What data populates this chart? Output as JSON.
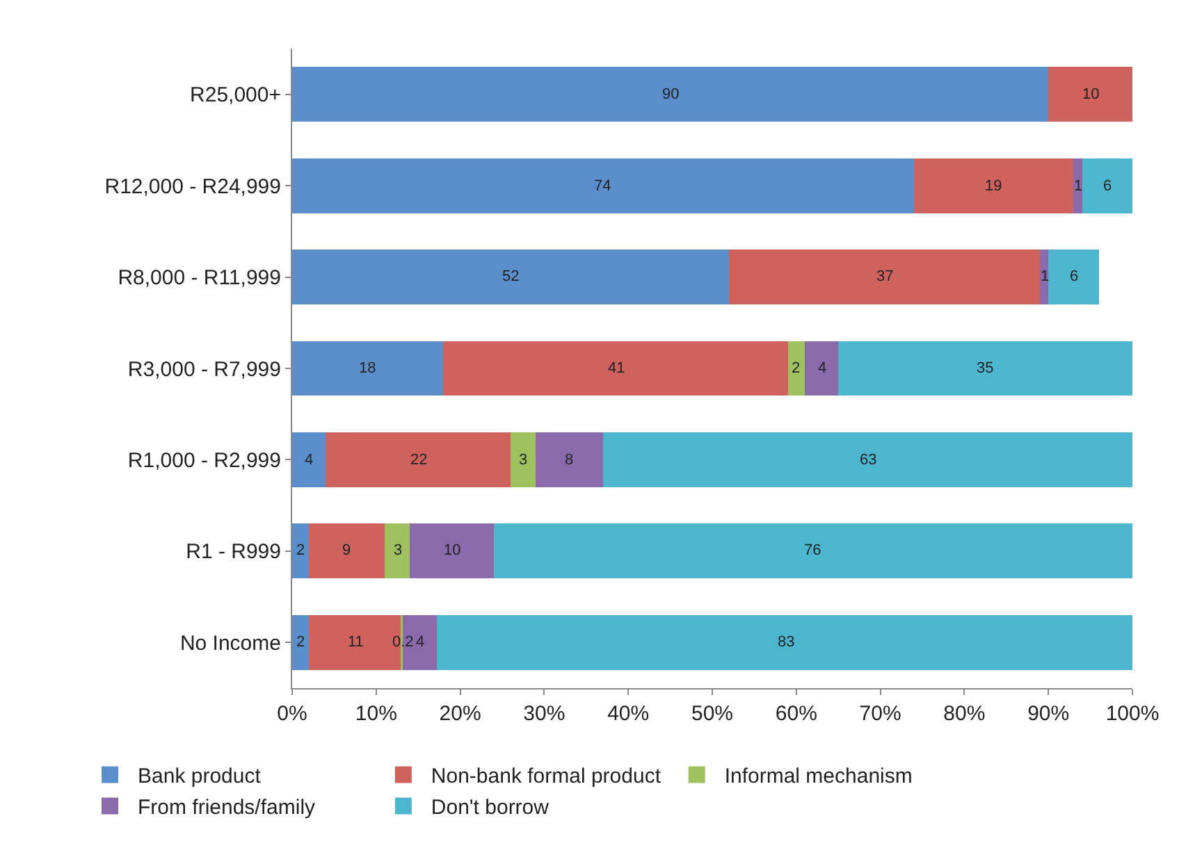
{
  "chart_data": {
    "type": "bar",
    "orientation": "horizontal",
    "stacked": true,
    "data_labels": true,
    "legend": "bottom",
    "grid": false,
    "categories": [
      "R25,000+",
      "R12,000 - R24,999",
      "R8,000 - R11,999",
      "R3,000 - R7,999",
      "R1,000 - R2,999",
      "R1 - R999",
      "No Income"
    ],
    "series": [
      {
        "name": "Bank product",
        "color": "#5b8fcc",
        "values": [
          90,
          74,
          52,
          18,
          4,
          2,
          2
        ]
      },
      {
        "name": "Non-bank formal product",
        "color": "#d0625e",
        "values": [
          10,
          19,
          37,
          41,
          22,
          9,
          11
        ]
      },
      {
        "name": "Informal mechanism",
        "color": "#9fc15e",
        "values": [
          null,
          null,
          null,
          2,
          3,
          3,
          0.2
        ]
      },
      {
        "name": "From friends/family",
        "color": "#8a6aab",
        "values": [
          null,
          1,
          1,
          4,
          8,
          10,
          4
        ]
      },
      {
        "name": "Don't borrow",
        "color": "#4db6cf",
        "values": [
          null,
          6,
          6,
          35,
          63,
          76,
          83
        ]
      }
    ],
    "xlim": [
      0,
      100
    ],
    "xticks": [
      {
        "value": 0,
        "label": "0%"
      },
      {
        "value": 10,
        "label": "10%"
      },
      {
        "value": 20,
        "label": "20%"
      },
      {
        "value": 30,
        "label": "30%"
      },
      {
        "value": 40,
        "label": "40%"
      },
      {
        "value": 50,
        "label": "50%"
      },
      {
        "value": 60,
        "label": "60%"
      },
      {
        "value": 70,
        "label": "70%"
      },
      {
        "value": 80,
        "label": "80%"
      },
      {
        "value": 90,
        "label": "90%"
      },
      {
        "value": 100,
        "label": "100%"
      }
    ]
  }
}
